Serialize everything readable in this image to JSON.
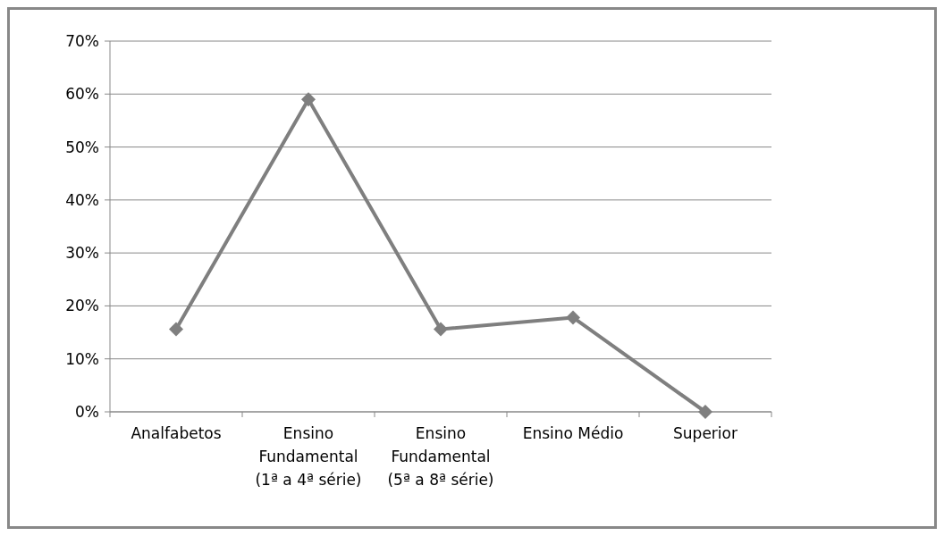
{
  "chart_data": {
    "type": "line",
    "categories": [
      "Analfabetos",
      "Ensino Fundamental (1ª a 4ª série)",
      "Ensino Fundamental (5ª a 8ª série)",
      "Ensino Médio",
      "Superior"
    ],
    "series": [
      {
        "color": "#7f7f7f",
        "values": [
          15.6,
          59,
          15.6,
          17.8,
          0
        ]
      }
    ],
    "ylim": [
      0,
      70
    ],
    "yticks": [
      {
        "value": 0,
        "label": "0%"
      },
      {
        "value": 10,
        "label": "10%"
      },
      {
        "value": 20,
        "label": "20%"
      },
      {
        "value": 30,
        "label": "30%"
      },
      {
        "value": 40,
        "label": "40%"
      },
      {
        "value": 50,
        "label": "50%"
      },
      {
        "value": 60,
        "label": "60%"
      },
      {
        "value": 70,
        "label": "70%"
      }
    ],
    "grid": "y",
    "marker": "diamond"
  }
}
